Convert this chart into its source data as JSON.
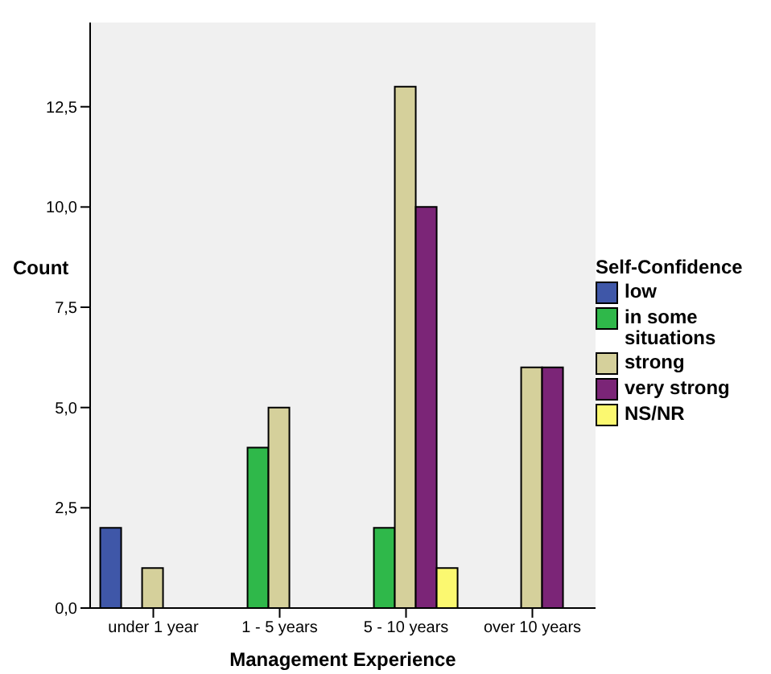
{
  "chart_data": {
    "type": "bar",
    "xlabel": "Management Experience",
    "ylabel": "Count",
    "legend_title": "Self-Confidence",
    "categories": [
      "under 1 year",
      "1 - 5 years",
      "5 - 10 years",
      "over 10 years"
    ],
    "series": [
      {
        "name": "low",
        "color": "#3f57a8",
        "values": [
          2,
          null,
          null,
          null
        ]
      },
      {
        "name": "in some situations",
        "color": "#2fb84a",
        "values": [
          null,
          4,
          2,
          null
        ]
      },
      {
        "name": "strong",
        "color": "#d5d09b",
        "values": [
          1,
          5,
          13,
          6
        ]
      },
      {
        "name": "very strong",
        "color": "#7b2577",
        "values": [
          null,
          null,
          10,
          6
        ]
      },
      {
        "name": "NS/NR",
        "color": "#fbf870",
        "values": [
          null,
          null,
          1,
          null
        ]
      }
    ],
    "ylim": [
      0,
      14.6
    ],
    "yticks": [
      {
        "value": 0,
        "label": "0,0"
      },
      {
        "value": 2.5,
        "label": "2,5"
      },
      {
        "value": 5,
        "label": "5,0"
      },
      {
        "value": 7.5,
        "label": "7,5"
      },
      {
        "value": 10,
        "label": "10,0"
      },
      {
        "value": 12.5,
        "label": "12,5"
      }
    ],
    "grid": false,
    "legend": "right"
  }
}
